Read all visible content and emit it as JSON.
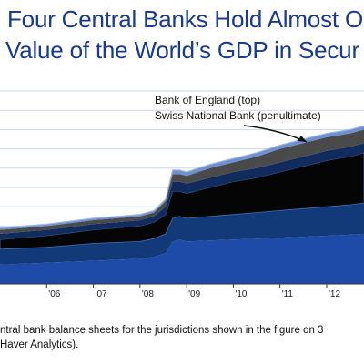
{
  "title_line1": "Four Central Banks Hold Almost On",
  "title_line2": "Value of the World’s GDP in Secur",
  "annotation_line1": "Bank of England (top)",
  "annotation_line2": "Swiss National Bank (penultimate)",
  "footnote_line1": "ntral bank balance sheets for the jurisdictions shown in the figure on 3",
  "footnote_line2": "Haver Analytics).",
  "colors": {
    "title": "#1a3a8a",
    "layer_base": "#1e4aa8",
    "layer_2": "#123a78",
    "layer_3": "#050505",
    "layer_4": "#102b5c",
    "layer_5": "#4a4a4a",
    "layer_top": "#6e8fd0",
    "grid": "#c9d8ee"
  },
  "chart_data": {
    "type": "area",
    "stacked": true,
    "title": "Four Central Banks Hold Almost On Value of the World’s GDP in Secur",
    "xlabel": "",
    "ylabel": "",
    "x": [
      2005.0,
      2005.5,
      2006.0,
      2006.5,
      2007.0,
      2007.5,
      2008.0,
      2008.3,
      2008.55,
      2008.7,
      2008.85,
      2009.0,
      2009.5,
      2010.0,
      2010.5,
      2011.0,
      2011.5,
      2012.0,
      2012.5,
      2012.8
    ],
    "x_tick_labels": [
      "'06",
      "'07",
      "'08",
      "'09",
      "'10",
      "'11",
      "'12"
    ],
    "x_tick_values": [
      2006,
      2007,
      2008,
      2009,
      2010,
      2011,
      2012
    ],
    "xlim": [
      2005.0,
      2012.8
    ],
    "ylim": [
      0,
      100
    ],
    "grid": true,
    "series": [
      {
        "values": [
          10,
          10.5,
          11,
          11.5,
          12,
          12.5,
          13,
          14,
          16,
          22,
          23,
          22,
          22.5,
          23,
          23.5,
          24,
          24.5,
          25,
          25.5,
          26
        ]
      },
      {
        "values": [
          8,
          8,
          8,
          8.5,
          9,
          9,
          9,
          9.5,
          10,
          12,
          12,
          12,
          12.5,
          13,
          13.5,
          14,
          14.5,
          15,
          15.5,
          16
        ]
      },
      {
        "values": [
          5,
          5.5,
          6,
          6.5,
          7,
          7.5,
          8,
          8.5,
          10,
          14,
          13,
          13,
          15,
          17,
          18,
          20,
          22,
          24,
          25,
          26
        ]
      },
      {
        "values": [
          3,
          3,
          3,
          3,
          3,
          3,
          3,
          3,
          4,
          5,
          5,
          5,
          5,
          5,
          5,
          5,
          5,
          5,
          5,
          5
        ]
      },
      {
        "values": [
          2,
          2,
          2,
          2,
          2,
          2,
          2,
          2,
          3,
          4,
          4,
          4,
          5,
          5,
          6,
          7,
          7,
          7,
          7,
          7
        ]
      },
      {
        "values": [
          1,
          1,
          1,
          1,
          1,
          1,
          1,
          1,
          1,
          2,
          2,
          2,
          2,
          2,
          2,
          2,
          2,
          2,
          2,
          2
        ]
      }
    ]
  }
}
